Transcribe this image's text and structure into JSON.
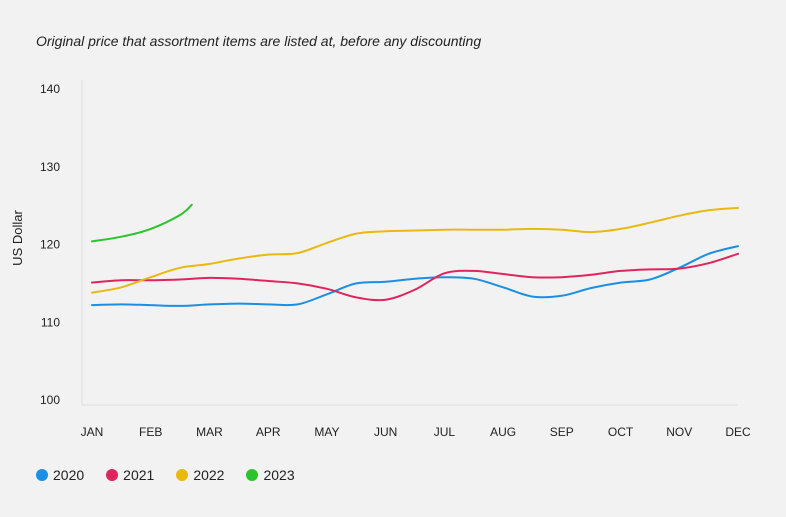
{
  "chart_data": {
    "type": "line",
    "title": "",
    "subtitle": "Original price that assortment items are listed at, before any discounting",
    "xlabel": "",
    "ylabel": "US Dollar",
    "categories": [
      "JAN",
      "FEB",
      "MAR",
      "APR",
      "MAY",
      "JUN",
      "JUL",
      "AUG",
      "SEP",
      "OCT",
      "NOV",
      "DEC"
    ],
    "y_ticks": [
      100,
      110,
      120,
      130,
      140
    ],
    "ylim": [
      100,
      140
    ],
    "grid": false,
    "legend_position": "bottom-left",
    "series": [
      {
        "name": "2020",
        "color": "#1a8fe3",
        "x": [
          0,
          0.5,
          1,
          1.5,
          2,
          2.5,
          3,
          3.5,
          4,
          4.5,
          5,
          5.5,
          6,
          6.5,
          7,
          7.5,
          8,
          8.5,
          9,
          9.5,
          10,
          10.5,
          11
        ],
        "values": [
          112.2,
          112.3,
          112.2,
          112.1,
          112.3,
          112.4,
          112.3,
          112.3,
          113.6,
          115.0,
          115.2,
          115.6,
          115.8,
          115.6,
          114.5,
          113.3,
          113.4,
          114.4,
          115.1,
          115.5,
          117.0,
          118.8,
          119.8
        ]
      },
      {
        "name": "2021",
        "color": "#e0245e",
        "x": [
          0,
          0.5,
          1,
          1.5,
          2,
          2.5,
          3,
          3.5,
          4,
          4.5,
          5,
          5.5,
          6,
          6.5,
          7,
          7.5,
          8,
          8.5,
          9,
          9.5,
          10,
          10.5,
          11
        ],
        "values": [
          115.1,
          115.4,
          115.4,
          115.5,
          115.7,
          115.6,
          115.3,
          115.0,
          114.3,
          113.2,
          112.9,
          114.2,
          116.3,
          116.6,
          116.2,
          115.8,
          115.8,
          116.1,
          116.6,
          116.8,
          116.9,
          117.6,
          118.8
        ]
      },
      {
        "name": "2022",
        "color": "#e8b90f",
        "x": [
          0,
          0.5,
          1,
          1.5,
          2,
          2.5,
          3,
          3.5,
          4,
          4.5,
          5,
          5.5,
          6,
          6.5,
          7,
          7.5,
          8,
          8.5,
          9,
          9.5,
          10,
          10.5,
          11
        ],
        "values": [
          113.8,
          114.5,
          115.8,
          117.0,
          117.5,
          118.2,
          118.7,
          118.9,
          120.2,
          121.4,
          121.7,
          121.8,
          121.9,
          121.9,
          121.9,
          122.0,
          121.9,
          121.6,
          122.0,
          122.8,
          123.7,
          124.4,
          124.7
        ]
      },
      {
        "name": "2023",
        "color": "#2bc42b",
        "x": [
          0,
          0.5,
          1,
          1.5,
          1.7
        ],
        "values": [
          120.4,
          121.0,
          122.0,
          123.8,
          125.1
        ]
      }
    ]
  }
}
